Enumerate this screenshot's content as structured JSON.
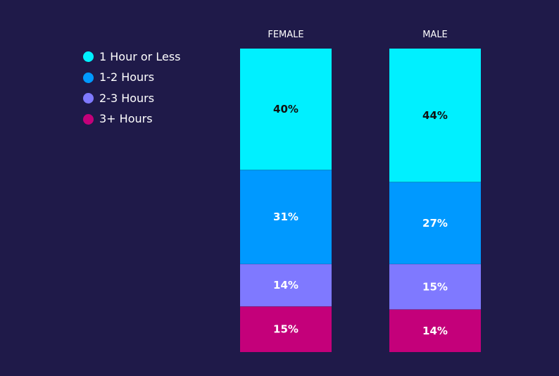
{
  "chart_data": {
    "type": "bar",
    "stacked": true,
    "categories": [
      "FEMALE",
      "MALE"
    ],
    "series": [
      {
        "name": "1 Hour or Less",
        "color": "#00f0ff",
        "values": [
          40,
          44
        ],
        "labels": [
          "40%",
          "44%"
        ]
      },
      {
        "name": "1-2 Hours",
        "color": "#0099ff",
        "values": [
          31,
          27
        ],
        "labels": [
          "31%",
          "27%"
        ]
      },
      {
        "name": "2-3 Hours",
        "color": "#7f79ff",
        "values": [
          14,
          15
        ],
        "labels": [
          "14%",
          "15%"
        ]
      },
      {
        "name": "3+ Hours",
        "color": "#c4007a",
        "values": [
          15,
          14
        ],
        "labels": [
          "15%",
          "14%"
        ]
      }
    ],
    "title": "",
    "xlabel": "",
    "ylabel": "",
    "legend_position": "top-left",
    "grid": false
  }
}
